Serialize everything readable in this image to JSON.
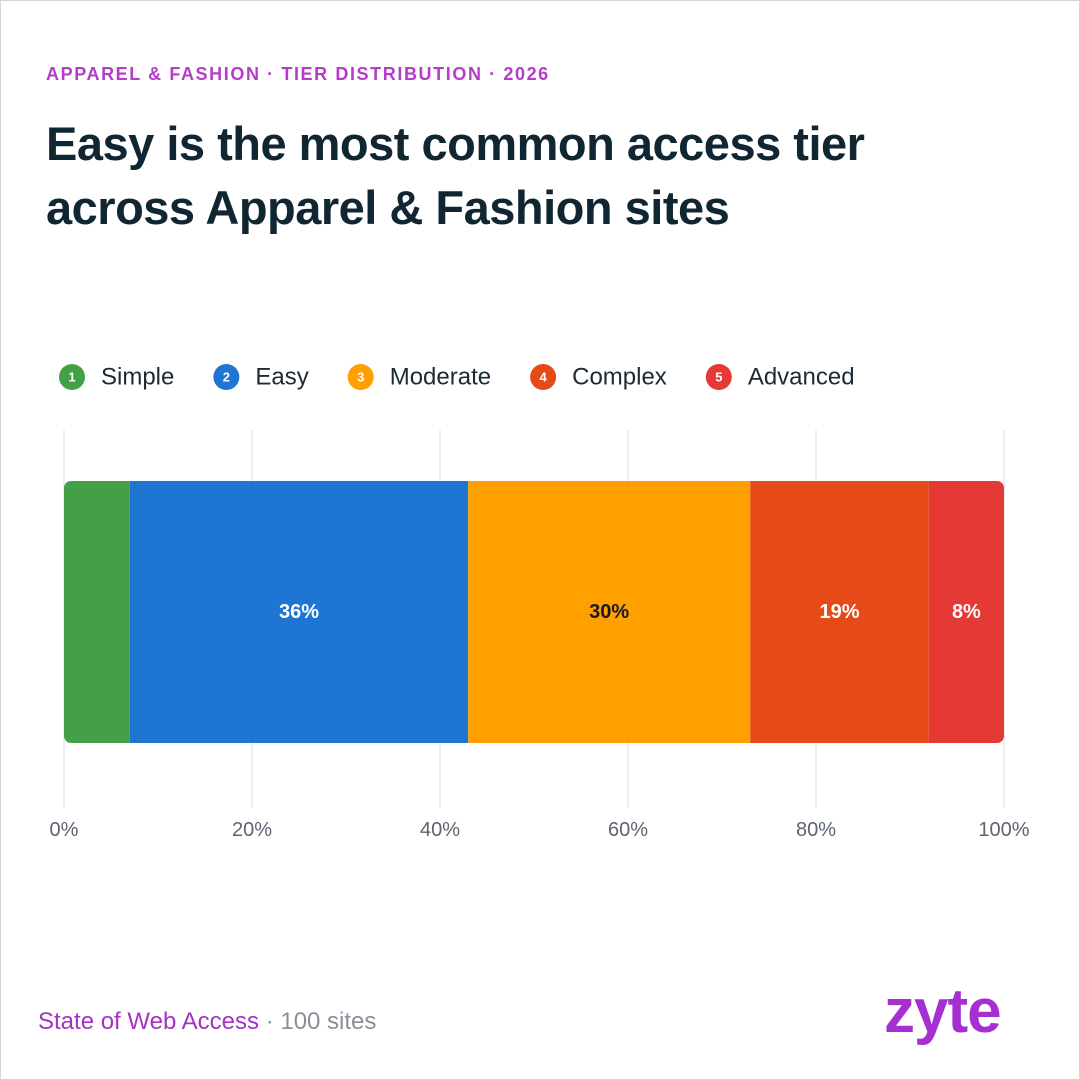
{
  "chart_data": {
    "type": "stacked_bar_horizontal",
    "kicker": "APPAREL & FASHION · TIER DISTRIBUTION · 2026",
    "title": "Easy is the most common access tier across Apparel & Fashion sites",
    "series": [
      {
        "name": "Simple",
        "badge": "1",
        "color": "#43a047",
        "label_color": "#ffffff",
        "values": [
          7
        ],
        "value_labels": [
          null
        ]
      },
      {
        "name": "Easy",
        "badge": "2",
        "color": "#1e76d2",
        "label_color": "#ffffff",
        "values": [
          36
        ],
        "value_labels": [
          "36%"
        ]
      },
      {
        "name": "Moderate",
        "badge": "3",
        "color": "#ffa000",
        "label_color": "#1a1a1a",
        "values": [
          30
        ],
        "value_labels": [
          "30%"
        ]
      },
      {
        "name": "Complex",
        "badge": "4",
        "color": "#e64a19",
        "label_color": "#ffffff",
        "values": [
          19
        ],
        "value_labels": [
          "19%"
        ]
      },
      {
        "name": "Advanced",
        "badge": "5",
        "color": "#e53935",
        "label_color": "#ffffff",
        "values": [
          8
        ],
        "value_labels": [
          "8%"
        ]
      }
    ],
    "xlim": [
      0,
      100
    ],
    "xticks": [
      {
        "value": 0,
        "label": "0%"
      },
      {
        "value": 20,
        "label": "20%"
      },
      {
        "value": 40,
        "label": "40%"
      },
      {
        "value": 60,
        "label": "60%"
      },
      {
        "value": 80,
        "label": "80%"
      },
      {
        "value": 100,
        "label": "100%"
      }
    ],
    "grid": true,
    "footer_source": "State of Web Access",
    "footer_note": "· 100 sites",
    "brand": "zyte"
  }
}
